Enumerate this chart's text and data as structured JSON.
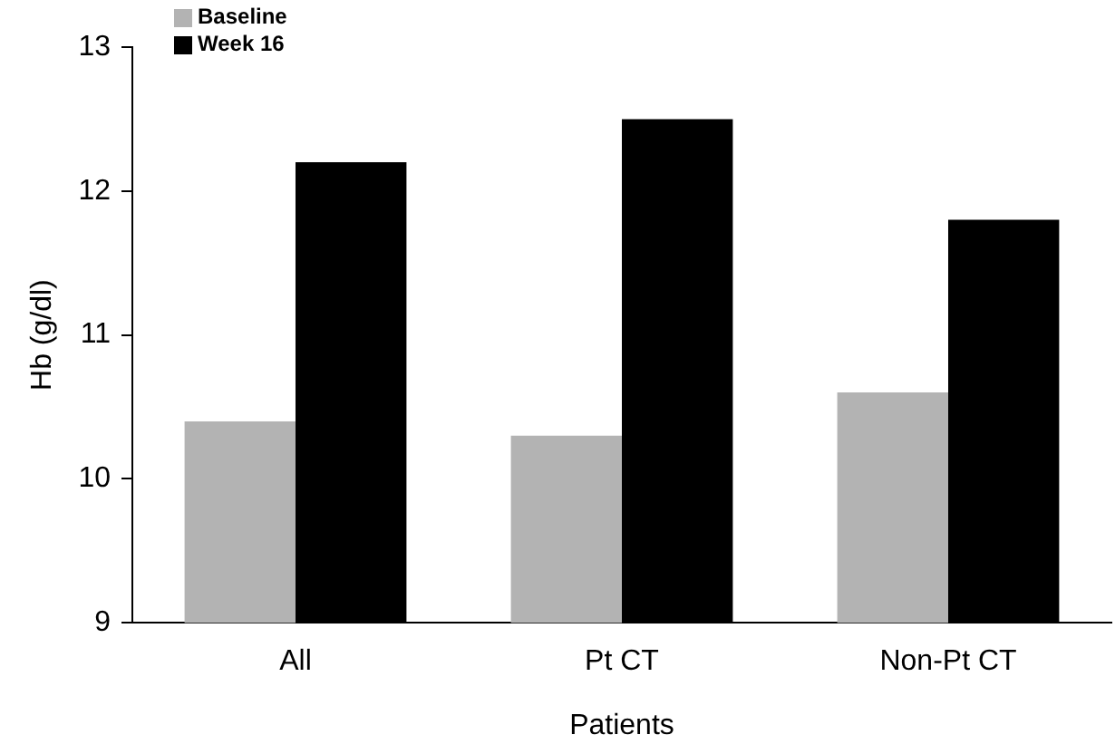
{
  "chart_data": {
    "type": "bar",
    "xlabel": "Patients",
    "ylabel": "Hb (g/dl)",
    "categories": [
      "All",
      "Pt CT",
      "Non-Pt CT"
    ],
    "series": [
      {
        "name": "Baseline",
        "color": "#b3b3b3",
        "values": [
          10.4,
          10.3,
          10.6
        ]
      },
      {
        "name": "Week 16",
        "color": "#000000",
        "values": [
          12.2,
          12.5,
          11.8
        ]
      }
    ],
    "ylim": [
      9,
      13
    ],
    "yticks": [
      9,
      10,
      11,
      12,
      13
    ],
    "grid": false,
    "legend": "top left"
  }
}
